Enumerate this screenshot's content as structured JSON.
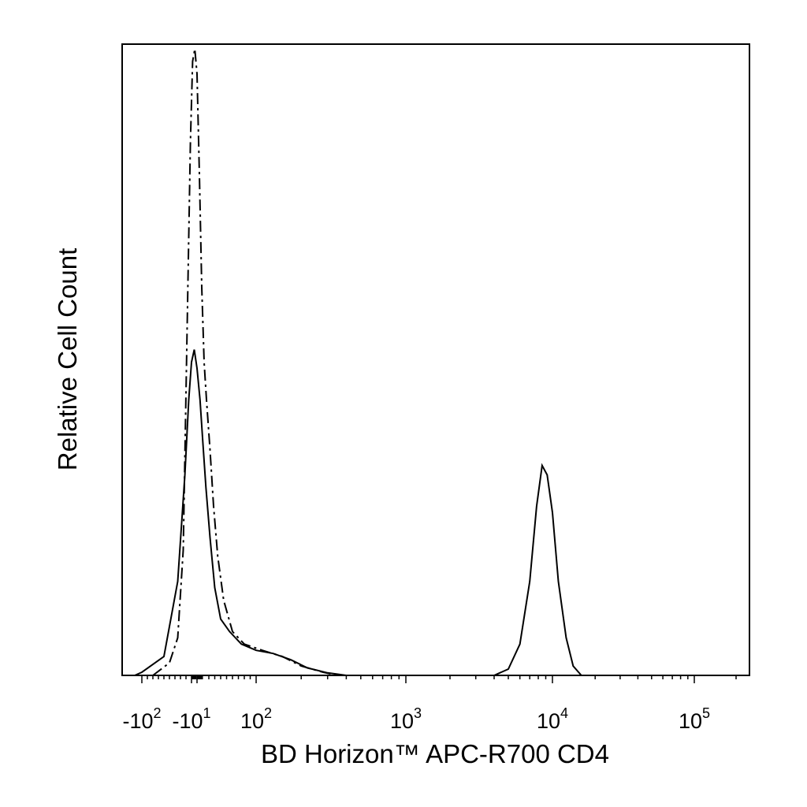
{
  "chart_data": {
    "type": "line",
    "title": "",
    "xlabel": "BD Horizon™ APC-R700 CD4",
    "ylabel": "Relative Cell Count",
    "x_scale": "biexponential",
    "xlim": [
      -200,
      250000
    ],
    "ylim": [
      0,
      1.0
    ],
    "grid": false,
    "legend": "none",
    "x_ticks": [
      {
        "value": -100,
        "base": "-10",
        "exp": "2"
      },
      {
        "value": -10,
        "base": "-10",
        "exp": "1"
      },
      {
        "value": 100,
        "base": "10",
        "exp": "2"
      },
      {
        "value": 1000,
        "base": "10",
        "exp": "3"
      },
      {
        "value": 10000,
        "base": "10",
        "exp": "4"
      },
      {
        "value": 100000,
        "base": "10",
        "exp": "5"
      }
    ],
    "series": [
      {
        "style": "dash-dot",
        "points": [
          [
            -80,
            0.0
          ],
          [
            -50,
            0.02
          ],
          [
            -35,
            0.06
          ],
          [
            -25,
            0.2
          ],
          [
            -18,
            0.55
          ],
          [
            -12,
            0.85
          ],
          [
            -8,
            0.98
          ],
          [
            -4,
            1.0
          ],
          [
            0,
            0.96
          ],
          [
            4,
            0.8
          ],
          [
            8,
            0.62
          ],
          [
            12,
            0.5
          ],
          [
            16,
            0.44
          ],
          [
            22,
            0.36
          ],
          [
            28,
            0.27
          ],
          [
            35,
            0.19
          ],
          [
            45,
            0.12
          ],
          [
            60,
            0.07
          ],
          [
            80,
            0.05
          ],
          [
            110,
            0.04
          ],
          [
            150,
            0.03
          ],
          [
            200,
            0.015
          ],
          [
            280,
            0.005
          ],
          [
            350,
            0.0
          ]
        ]
      },
      {
        "style": "solid",
        "points": [
          [
            -150,
            0.0
          ],
          [
            -100,
            0.005
          ],
          [
            -60,
            0.03
          ],
          [
            -35,
            0.15
          ],
          [
            -22,
            0.32
          ],
          [
            -15,
            0.44
          ],
          [
            -10,
            0.5
          ],
          [
            -5,
            0.52
          ],
          [
            0,
            0.49
          ],
          [
            5,
            0.44
          ],
          [
            10,
            0.37
          ],
          [
            15,
            0.3
          ],
          [
            22,
            0.22
          ],
          [
            30,
            0.14
          ],
          [
            40,
            0.09
          ],
          [
            55,
            0.07
          ],
          [
            75,
            0.05
          ],
          [
            100,
            0.04
          ],
          [
            130,
            0.035
          ],
          [
            170,
            0.025
          ],
          [
            220,
            0.012
          ],
          [
            300,
            0.004
          ],
          [
            400,
            0.0
          ],
          [
            4000,
            0.0
          ],
          [
            5000,
            0.01
          ],
          [
            6000,
            0.05
          ],
          [
            7000,
            0.15
          ],
          [
            7800,
            0.27
          ],
          [
            8500,
            0.335
          ],
          [
            9200,
            0.32
          ],
          [
            10000,
            0.26
          ],
          [
            11000,
            0.15
          ],
          [
            12500,
            0.06
          ],
          [
            14000,
            0.015
          ],
          [
            16000,
            0.0
          ]
        ]
      }
    ]
  }
}
